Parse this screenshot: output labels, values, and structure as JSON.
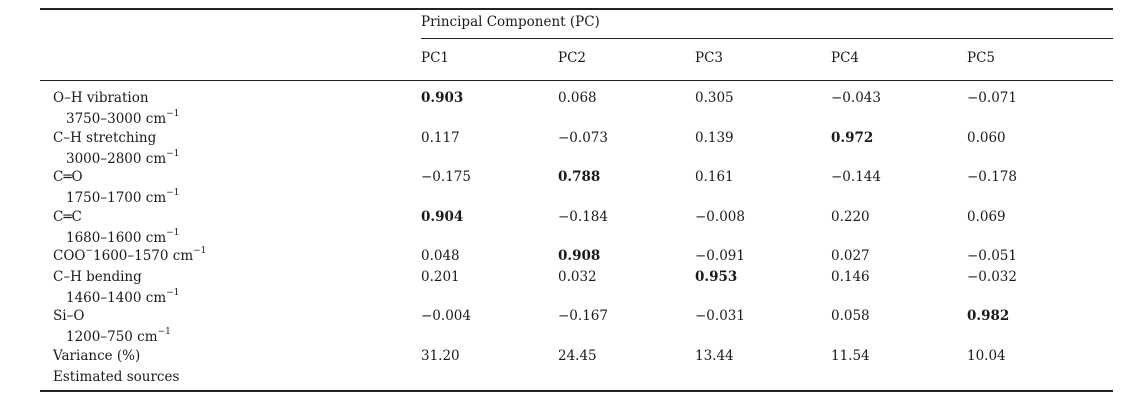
{
  "table": {
    "group_header": "Principal Component (PC)",
    "columns": [
      "PC1",
      "PC2",
      "PC3",
      "PC4",
      "PC5"
    ],
    "rows": [
      {
        "label": "O–H vibration",
        "range": "3750–3000 cm",
        "range_sup": "−1",
        "values": [
          "0.903",
          "0.068",
          "0.305",
          "−0.043",
          "−0.071"
        ],
        "bold": [
          0
        ]
      },
      {
        "label": "C–H stretching",
        "range": "3000–2800 cm",
        "range_sup": "−1",
        "values": [
          "0.117",
          "−0.073",
          "0.139",
          "0.972",
          "0.060"
        ],
        "bold": [
          3
        ]
      },
      {
        "label": "C═O",
        "range": "1750–1700 cm",
        "range_sup": "−1",
        "values": [
          "−0.175",
          "0.788",
          "0.161",
          "−0.144",
          "−0.178"
        ],
        "bold": [
          1
        ]
      },
      {
        "label": "C═C",
        "range": "1680–1600 cm",
        "range_sup": "−1",
        "values": [
          "0.904",
          "−0.184",
          "−0.008",
          "0.220",
          "0.069"
        ],
        "bold": [
          0
        ]
      },
      {
        "label": "COO",
        "label_sup": "−",
        "inline_range": "1600–1570 cm",
        "inline_sup": "−1",
        "values": [
          "0.048",
          "0.908",
          "−0.091",
          "0.027",
          "−0.051"
        ],
        "bold": [
          1
        ]
      },
      {
        "label": "C–H bending",
        "range": "1460–1400 cm",
        "range_sup": "−1",
        "values": [
          "0.201",
          "0.032",
          "0.953",
          "0.146",
          "−0.032"
        ],
        "bold": [
          2
        ]
      },
      {
        "label": "Si–O",
        "range": "1200–750 cm",
        "range_sup": "−1",
        "values": [
          "−0.004",
          "−0.167",
          "−0.031",
          "0.058",
          "0.982"
        ],
        "bold": [
          4
        ]
      },
      {
        "label": "Variance (%)",
        "values": [
          "31.20",
          "24.45",
          "13.44",
          "11.54",
          "10.04"
        ],
        "bold": []
      },
      {
        "label": "Estimated sources",
        "values": [],
        "bold": []
      }
    ]
  }
}
